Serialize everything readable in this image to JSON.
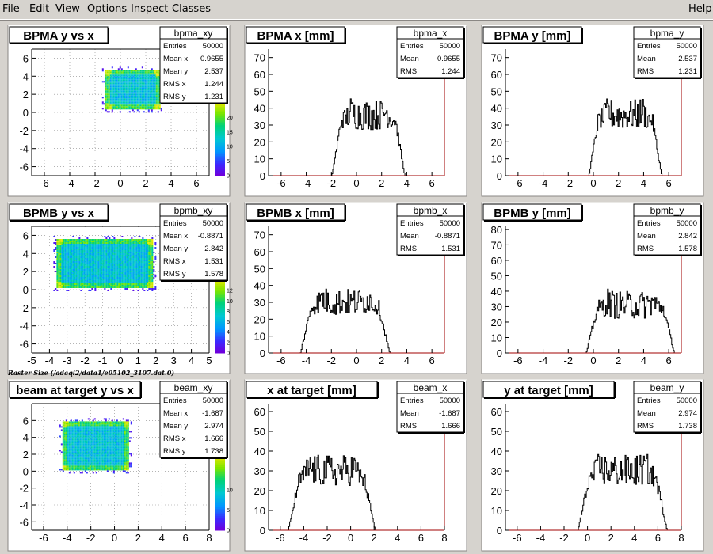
{
  "menu": {
    "file": "File",
    "edit": "Edit",
    "view": "View",
    "options": "Options",
    "inspect": "Inspect",
    "classes": "Classes",
    "help": "Help"
  },
  "canvas": {
    "background": "#d6d3ce",
    "pad_background": "#ffffff",
    "title_box_background": "#ffffff",
    "axis_color": "#000000",
    "frame_right_color": "#a00000",
    "histogram_color": "#000000"
  },
  "raster_caption": "Raster Size (/adaql2/data1/e05102_3107.dat.0)",
  "chart_data": [
    {
      "type": "heatmap",
      "title": "BPMA y vs x",
      "xlim": [
        -7,
        7
      ],
      "ylim": [
        -7,
        7
      ],
      "xticks": [
        -6,
        -4,
        -2,
        0,
        2,
        4,
        6
      ],
      "yticks": [
        -6,
        -4,
        -2,
        0,
        2,
        4,
        6
      ],
      "grid": true,
      "region": {
        "x": [
          -1.2,
          3.1
        ],
        "y": [
          0.4,
          4.7
        ]
      },
      "palette": {
        "zmin": 0,
        "zmax": 25,
        "ticks": [
          0,
          5,
          10,
          15,
          20
        ],
        "visible_from": 0
      },
      "stats": {
        "name": "bpma_xy",
        "rows": [
          {
            "label": "Entries",
            "value": "50000"
          },
          {
            "label": "Mean x",
            "value": "0.9655"
          },
          {
            "label": "Mean y",
            "value": "2.537"
          },
          {
            "label": "RMS x",
            "value": "1.244"
          },
          {
            "label": "RMS y",
            "value": "1.231"
          }
        ]
      }
    },
    {
      "type": "line",
      "title": "BPMA x [mm]",
      "xlim": [
        -7,
        7
      ],
      "ylim": [
        0,
        75
      ],
      "xticks": [
        -6,
        -4,
        -2,
        0,
        2,
        4,
        6
      ],
      "yticks": [
        0,
        10,
        20,
        30,
        40,
        50,
        60,
        70
      ],
      "shape": {
        "lo": -1.2,
        "hi": 3.1,
        "edge": 0.75,
        "base": 36,
        "horn": 30,
        "noise": 9,
        "peak": 74
      },
      "stats": {
        "name": "bpma_x",
        "rows": [
          {
            "label": "Entries",
            "value": "50000"
          },
          {
            "label": "Mean",
            "value": "0.9655"
          },
          {
            "label": "RMS",
            "value": "1.244"
          }
        ]
      }
    },
    {
      "type": "line",
      "title": "BPMA y [mm]",
      "xlim": [
        -7,
        7
      ],
      "ylim": [
        0,
        75
      ],
      "xticks": [
        -6,
        -4,
        -2,
        0,
        2,
        4,
        6
      ],
      "yticks": [
        0,
        10,
        20,
        30,
        40,
        50,
        60,
        70
      ],
      "shape": {
        "lo": 0.4,
        "hi": 4.7,
        "edge": 0.75,
        "base": 36,
        "horn": 30,
        "noise": 9,
        "peak": 73
      },
      "stats": {
        "name": "bpma_y",
        "rows": [
          {
            "label": "Entries",
            "value": "50000"
          },
          {
            "label": "Mean",
            "value": "2.537"
          },
          {
            "label": "RMS",
            "value": "1.231"
          }
        ]
      }
    },
    {
      "type": "heatmap",
      "title": "BPMB y vs x",
      "xlim": [
        -5,
        5
      ],
      "ylim": [
        -7,
        7
      ],
      "xticks": [
        -5,
        -4,
        -3,
        -2,
        -1,
        0,
        1,
        2,
        3,
        4,
        5
      ],
      "yticks": [
        -6,
        -4,
        -2,
        0,
        2,
        4,
        6
      ],
      "grid": true,
      "region": {
        "x": [
          -3.6,
          1.8
        ],
        "y": [
          0.3,
          5.6
        ]
      },
      "palette": {
        "zmin": 0,
        "zmax": 14,
        "ticks": [
          0,
          2,
          4,
          6,
          8,
          10,
          12
        ],
        "visible_from": 0
      },
      "stats": {
        "name": "bpmb_xy",
        "rows": [
          {
            "label": "Entries",
            "value": "50000"
          },
          {
            "label": "Mean x",
            "value": "-0.8871"
          },
          {
            "label": "Mean y",
            "value": "2.842"
          },
          {
            "label": "RMS x",
            "value": "1.531"
          },
          {
            "label": "RMS y",
            "value": "1.578"
          }
        ]
      }
    },
    {
      "type": "line",
      "title": "BPMB x [mm]",
      "xlim": [
        -7,
        7
      ],
      "ylim": [
        0,
        75
      ],
      "xticks": [
        -6,
        -4,
        -2,
        0,
        2,
        4,
        6
      ],
      "yticks": [
        0,
        10,
        20,
        30,
        40,
        50,
        60,
        70
      ],
      "shape": {
        "lo": -3.6,
        "hi": 1.8,
        "edge": 0.85,
        "base": 30,
        "horn": 24,
        "noise": 8,
        "peak": 72
      },
      "stats": {
        "name": "bpmb_x",
        "rows": [
          {
            "label": "Entries",
            "value": "50000"
          },
          {
            "label": "Mean",
            "value": "-0.8871"
          },
          {
            "label": "RMS",
            "value": "1.531"
          }
        ]
      }
    },
    {
      "type": "line",
      "title": "BPMB y [mm]",
      "xlim": [
        -7,
        7
      ],
      "ylim": [
        0,
        82
      ],
      "xticks": [
        -6,
        -4,
        -2,
        0,
        2,
        4,
        6
      ],
      "yticks": [
        0,
        10,
        20,
        30,
        40,
        50,
        60,
        70,
        80
      ],
      "shape": {
        "lo": 0.3,
        "hi": 5.6,
        "edge": 0.85,
        "base": 31,
        "horn": 26,
        "noise": 9,
        "peak": 68
      },
      "stats": {
        "name": "bpmb_y",
        "rows": [
          {
            "label": "Entries",
            "value": "50000"
          },
          {
            "label": "Mean",
            "value": "2.842"
          },
          {
            "label": "RMS",
            "value": "1.578"
          }
        ]
      }
    },
    {
      "type": "heatmap",
      "title": "beam at target y vs x",
      "xlim": [
        -7,
        8
      ],
      "ylim": [
        -7,
        8
      ],
      "xticks": [
        -6,
        -4,
        -2,
        0,
        2,
        4,
        6,
        8
      ],
      "yticks": [
        -6,
        -4,
        -2,
        0,
        2,
        4,
        6
      ],
      "grid": true,
      "region": {
        "x": [
          -4.4,
          1.2
        ],
        "y": [
          0.1,
          5.9
        ]
      },
      "palette": {
        "zmin": 0,
        "zmax": 18,
        "ticks": [
          0,
          5,
          10
        ],
        "visible_from": 0
      },
      "stats": {
        "name": "beam_xy",
        "rows": [
          {
            "label": "Entries",
            "value": "50000"
          },
          {
            "label": "Mean x",
            "value": "-1.687"
          },
          {
            "label": "Mean y",
            "value": "2.974"
          },
          {
            "label": "RMS x",
            "value": "1.666"
          },
          {
            "label": "RMS y",
            "value": "1.738"
          }
        ]
      }
    },
    {
      "type": "line",
      "title": "x at target [mm]",
      "xlim": [
        -7,
        8
      ],
      "ylim": [
        0,
        64
      ],
      "xticks": [
        -6,
        -4,
        -2,
        0,
        2,
        4,
        6,
        8
      ],
      "yticks": [
        0,
        10,
        20,
        30,
        40,
        50,
        60
      ],
      "shape": {
        "lo": -4.4,
        "hi": 1.2,
        "edge": 0.9,
        "base": 30,
        "horn": 20,
        "noise": 8,
        "peak": 62
      },
      "stats": {
        "name": "beam_x",
        "rows": [
          {
            "label": "Entries",
            "value": "50000"
          },
          {
            "label": "Mean",
            "value": "-1.687"
          },
          {
            "label": "RMS",
            "value": "1.666"
          }
        ]
      }
    },
    {
      "type": "line",
      "title": "y at target [mm]",
      "xlim": [
        -7,
        8
      ],
      "ylim": [
        0,
        64
      ],
      "xticks": [
        -6,
        -4,
        -2,
        0,
        2,
        4,
        6,
        8
      ],
      "yticks": [
        0,
        10,
        20,
        30,
        40,
        50,
        60
      ],
      "shape": {
        "lo": 0.1,
        "hi": 5.9,
        "edge": 0.9,
        "base": 30,
        "horn": 20,
        "noise": 8,
        "peak": 62
      },
      "stats": {
        "name": "beam_y",
        "rows": [
          {
            "label": "Entries",
            "value": "50000"
          },
          {
            "label": "Mean",
            "value": "2.974"
          },
          {
            "label": "RMS",
            "value": "1.738"
          }
        ]
      }
    }
  ]
}
